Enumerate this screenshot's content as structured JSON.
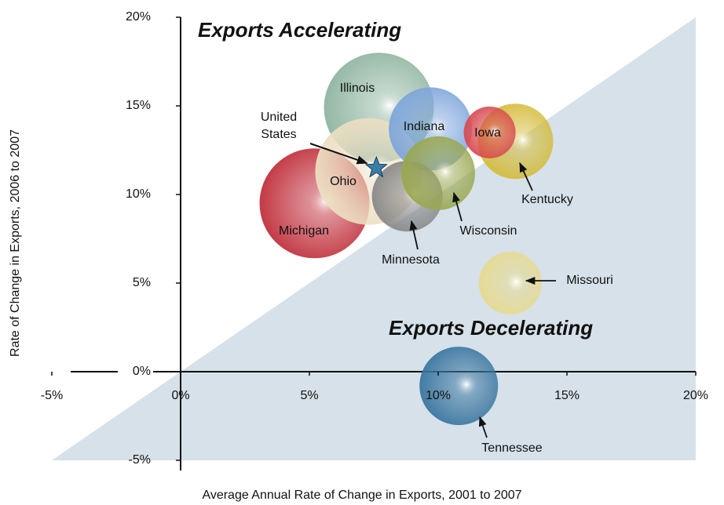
{
  "chart_data": {
    "type": "bubble",
    "xlabel": "Average Annual Rate of Change in Exports, 2001 to 2007",
    "ylabel": "Rate of Change in Exports, 2006 to 2007",
    "annotations": [
      "Exports Accelerating",
      "Exports Decelerating"
    ],
    "xlim": [
      -5,
      20
    ],
    "ylim": [
      -5,
      20
    ],
    "xticks": [
      {
        "value": -5,
        "label": "-5%"
      },
      {
        "value": 0,
        "label": "0%"
      },
      {
        "value": 5,
        "label": "5%"
      },
      {
        "value": 10,
        "label": "10%"
      },
      {
        "value": 15,
        "label": "15%"
      },
      {
        "value": 20,
        "label": "20%"
      }
    ],
    "yticks": [
      {
        "value": -5,
        "label": "-5%"
      },
      {
        "value": 0,
        "label": "0%"
      },
      {
        "value": 5,
        "label": "5%"
      },
      {
        "value": 10,
        "label": "10%"
      },
      {
        "value": 15,
        "label": "15%"
      },
      {
        "value": 20,
        "label": "20%"
      }
    ],
    "points": [
      {
        "name": "Michigan",
        "x": 5.2,
        "y": 9.5,
        "size": 70,
        "color": "#c0303c"
      },
      {
        "name": "Illinois",
        "x": 7.7,
        "y": 14.9,
        "size": 70,
        "color": "#8fb5a0"
      },
      {
        "name": "Ohio",
        "x": 7.3,
        "y": 11.3,
        "size": 68,
        "color": "#ecdfc2"
      },
      {
        "name": "Indiana",
        "x": 9.7,
        "y": 13.7,
        "size": 53,
        "color": "#7ea5dc"
      },
      {
        "name": "Minnesota",
        "x": 8.8,
        "y": 9.9,
        "size": 45,
        "color": "#888888"
      },
      {
        "name": "Wisconsin",
        "x": 10.0,
        "y": 11.2,
        "size": 47,
        "color": "#9aa850"
      },
      {
        "name": "Kentucky",
        "x": 13.0,
        "y": 13.0,
        "size": 48,
        "color": "#d4bc3c"
      },
      {
        "name": "Iowa",
        "x": 12.0,
        "y": 13.5,
        "size": 33,
        "color": "#d84a50"
      },
      {
        "name": "Missouri",
        "x": 12.8,
        "y": 5.0,
        "size": 40,
        "color": "#e6da90"
      },
      {
        "name": "Tennessee",
        "x": 10.8,
        "y": -0.8,
        "size": 50,
        "color": "#3a76a0"
      }
    ],
    "benchmark": {
      "name": [
        "United",
        "States"
      ],
      "x": 7.6,
      "y": 11.5,
      "color": "#3a7ea8"
    }
  }
}
